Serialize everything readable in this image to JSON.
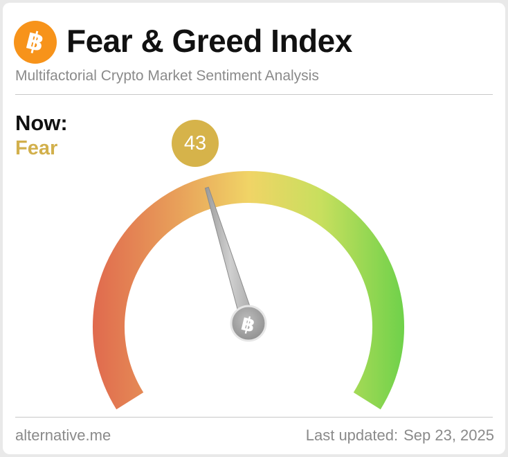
{
  "header": {
    "logo_glyph": "฿",
    "title": "Fear & Greed Index",
    "subtitle": "Multifactorial Crypto Market Sentiment Analysis"
  },
  "now": {
    "label": "Now:",
    "classification": "Fear",
    "classification_color": "#d2b04c"
  },
  "gauge": {
    "value": 43,
    "min": 0,
    "max": 100,
    "value_label": "43",
    "hub_glyph": "฿",
    "gradient_colors": [
      "#e06a4e",
      "#e8a05a",
      "#f0d466",
      "#c8df5e",
      "#6ed14a"
    ]
  },
  "footer": {
    "source": "alternative.me",
    "last_updated_label": "Last updated:",
    "last_updated_date": "Sep 23, 2025"
  },
  "colors": {
    "bitcoin_orange": "#f7931a",
    "badge": "#d6b34a"
  }
}
